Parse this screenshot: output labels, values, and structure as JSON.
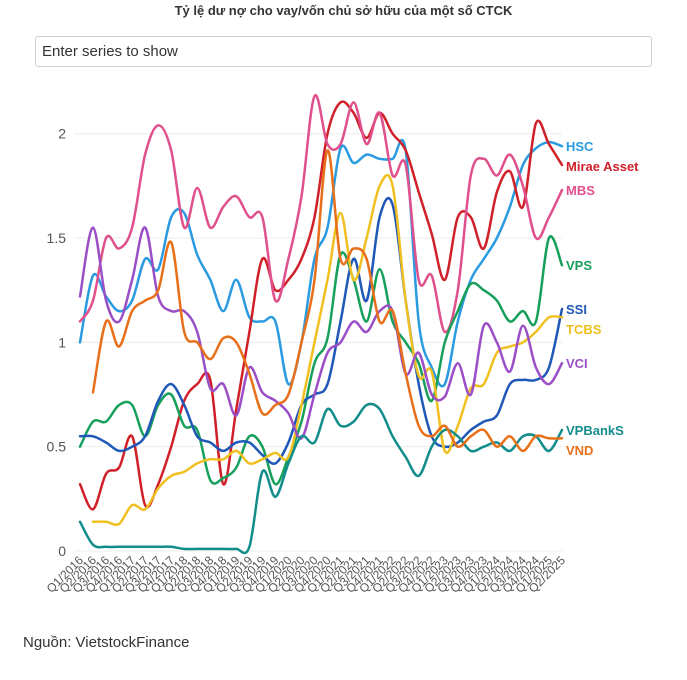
{
  "title": "Tỷ lệ dư nợ cho vay/vốn chủ sở hữu của một số CTCK",
  "search": {
    "placeholder": "Enter series to show"
  },
  "source": "Nguồn: VietstockFinance",
  "chart_data": {
    "type": "line",
    "title": "Tỷ lệ dư nợ cho vay/vốn chủ sở hữu của một số CTCK",
    "xlabel": "",
    "ylabel": "",
    "ylim": [
      0,
      2.2
    ],
    "yticks": [
      0,
      0.5,
      1,
      1.5,
      2
    ],
    "ytick_labels": [
      "0",
      "0.5",
      "1",
      "1.5",
      "2"
    ],
    "grid": true,
    "legend": "right-end labels",
    "x": [
      "Q1/2016",
      "Q2/2016",
      "Q3/2016",
      "Q4/2016",
      "Q1/2017",
      "Q2/2017",
      "Q3/2017",
      "Q4/2017",
      "Q1/2018",
      "Q2/2018",
      "Q3/2018",
      "Q4/2018",
      "Q1/2019",
      "Q2/2019",
      "Q3/2019",
      "Q4/2019",
      "Q1/2020",
      "Q2/2020",
      "Q3/2020",
      "Q4/2020",
      "Q1/2021",
      "Q2/2021",
      "Q3/2021",
      "Q4/2021",
      "Q1/2022",
      "Q2/2022",
      "Q3/2022",
      "Q4/2022",
      "Q1/2023",
      "Q2/2023",
      "Q3/2023",
      "Q4/2023",
      "Q1/2024",
      "Q2/2024",
      "Q3/2024",
      "Q4/2024",
      "Q1/2025",
      "Q2/2025"
    ],
    "series": [
      {
        "name": "HSC",
        "color": "#2a9be0",
        "values": [
          1.0,
          1.32,
          1.22,
          1.15,
          1.2,
          1.4,
          1.35,
          1.6,
          1.62,
          1.42,
          1.3,
          1.15,
          1.3,
          1.12,
          1.1,
          1.1,
          0.8,
          1.0,
          1.4,
          1.55,
          1.93,
          1.86,
          1.9,
          1.88,
          1.88,
          1.92,
          1.1,
          0.88,
          0.8,
          1.1,
          1.3,
          1.4,
          1.5,
          1.65,
          1.85,
          1.93,
          1.96,
          1.94
        ]
      },
      {
        "name": "Mirae Asset",
        "color": "#d0202a",
        "values": [
          0.32,
          0.2,
          0.37,
          0.4,
          0.55,
          0.22,
          0.32,
          0.5,
          0.72,
          0.8,
          0.82,
          0.32,
          0.68,
          1.05,
          1.4,
          1.25,
          1.3,
          1.4,
          1.6,
          2.0,
          2.15,
          2.1,
          1.98,
          2.1,
          2.0,
          1.92,
          1.72,
          1.52,
          1.3,
          1.6,
          1.6,
          1.45,
          1.72,
          1.82,
          1.65,
          2.05,
          1.95,
          1.85
        ]
      },
      {
        "name": "MBS",
        "color": "#e0508c",
        "values": [
          1.1,
          1.2,
          1.5,
          1.45,
          1.55,
          1.9,
          2.04,
          1.92,
          1.55,
          1.74,
          1.55,
          1.65,
          1.7,
          1.6,
          1.6,
          1.2,
          1.4,
          1.7,
          2.18,
          1.95,
          1.95,
          2.15,
          1.95,
          2.1,
          1.8,
          1.85,
          1.3,
          1.32,
          1.05,
          1.25,
          1.8,
          1.88,
          1.8,
          1.9,
          1.75,
          1.5,
          1.6,
          1.73
        ]
      },
      {
        "name": "VPS",
        "color": "#17a05c",
        "values": [
          0.5,
          0.62,
          0.62,
          0.7,
          0.7,
          0.55,
          0.7,
          0.75,
          0.6,
          0.58,
          0.34,
          0.35,
          0.4,
          0.55,
          0.5,
          0.32,
          0.45,
          0.62,
          0.9,
          1.02,
          1.42,
          1.3,
          1.1,
          1.35,
          1.1,
          1.0,
          0.9,
          0.72,
          1.0,
          1.15,
          1.28,
          1.25,
          1.2,
          1.1,
          1.15,
          1.1,
          1.5,
          1.37
        ]
      },
      {
        "name": "SSI",
        "color": "#2058b8",
        "values": [
          0.55,
          0.55,
          0.52,
          0.48,
          0.5,
          0.55,
          0.72,
          0.8,
          0.7,
          0.55,
          0.52,
          0.48,
          0.52,
          0.52,
          0.46,
          0.42,
          0.52,
          0.7,
          0.75,
          0.8,
          1.1,
          1.4,
          1.2,
          1.6,
          1.66,
          1.2,
          0.8,
          0.55,
          0.5,
          0.52,
          0.58,
          0.62,
          0.65,
          0.8,
          0.82,
          0.82,
          0.88,
          1.16
        ]
      },
      {
        "name": "TCBS",
        "color": "#f0c020",
        "values": [
          null,
          0.14,
          0.14,
          0.13,
          0.22,
          0.2,
          0.3,
          0.36,
          0.38,
          0.42,
          0.44,
          0.44,
          0.48,
          0.42,
          0.44,
          0.47,
          0.45,
          0.7,
          1.0,
          1.3,
          1.62,
          1.3,
          1.5,
          1.75,
          1.75,
          1.2,
          0.84,
          0.86,
          0.48,
          0.6,
          0.78,
          0.8,
          0.95,
          0.98,
          1.0,
          1.05,
          1.12,
          1.12
        ]
      },
      {
        "name": "VCI",
        "color": "#9b4fc6",
        "values": [
          1.22,
          1.55,
          1.2,
          1.1,
          1.3,
          1.55,
          1.22,
          1.15,
          1.15,
          1.05,
          0.78,
          0.8,
          0.65,
          0.88,
          0.76,
          0.72,
          0.66,
          0.54,
          0.75,
          0.95,
          1.0,
          1.1,
          1.05,
          1.15,
          1.15,
          0.85,
          0.95,
          0.75,
          0.74,
          0.9,
          0.75,
          1.08,
          1.0,
          0.86,
          1.08,
          0.88,
          0.8,
          0.9
        ]
      },
      {
        "name": "VPBankS",
        "color": "#138c8c",
        "values": [
          0.14,
          0.03,
          0.02,
          0.02,
          0.02,
          0.02,
          0.02,
          0.02,
          0.01,
          0.01,
          0.01,
          0.01,
          0.01,
          0.02,
          0.38,
          0.26,
          0.42,
          0.55,
          0.52,
          0.68,
          0.6,
          0.62,
          0.7,
          0.68,
          0.55,
          0.45,
          0.36,
          0.5,
          0.58,
          0.55,
          0.48,
          0.5,
          0.52,
          0.48,
          0.55,
          0.55,
          0.48,
          0.58
        ]
      },
      {
        "name": "VND",
        "color": "#e8701a",
        "values": [
          null,
          0.76,
          1.1,
          0.98,
          1.15,
          1.2,
          1.25,
          1.48,
          1.05,
          1.0,
          0.92,
          1.02,
          1.0,
          0.85,
          0.66,
          0.7,
          0.75,
          1.0,
          1.3,
          1.92,
          1.4,
          1.45,
          1.4,
          1.1,
          1.15,
          0.85,
          0.6,
          0.55,
          0.6,
          0.5,
          0.55,
          0.58,
          0.5,
          0.55,
          0.48,
          0.55,
          0.54,
          0.54
        ]
      }
    ]
  }
}
